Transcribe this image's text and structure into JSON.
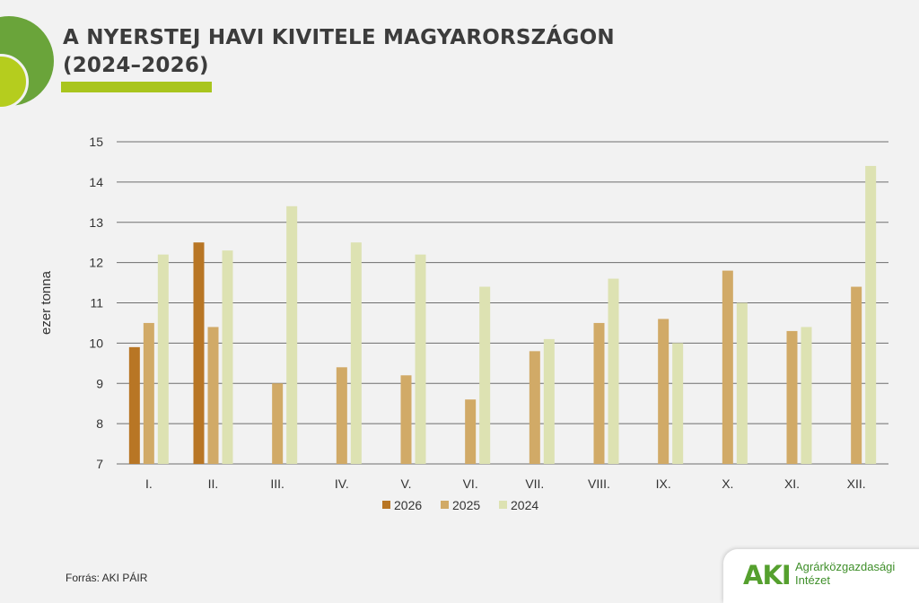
{
  "header": {
    "title_line1": "A NYERSTEJ HAVI KIVITELE MAGYARORSZÁGON",
    "title_line2": "(2024–2026)"
  },
  "footer": {
    "source": "Forrás: AKI PÁIR",
    "logo_mark": "AKI",
    "logo_line1": "Agrárközgazdasági",
    "logo_line2": "Intézet"
  },
  "chart_data": {
    "type": "bar",
    "title": "A NYERSTEJ HAVI KIVITELE MAGYARORSZÁGON (2024–2026)",
    "ylabel": "ezer tonna",
    "xlabel": "",
    "ylim": [
      7,
      15
    ],
    "yticks": [
      "7",
      "8",
      "9",
      "10",
      "11",
      "12",
      "13",
      "14",
      "15"
    ],
    "grid": true,
    "legend_position": "bottom",
    "categories": [
      "I.",
      "II.",
      "III.",
      "IV.",
      "V.",
      "VI.",
      "VII.",
      "VIII.",
      "IX.",
      "X.",
      "XI.",
      "XII."
    ],
    "series": [
      {
        "name": "2026",
        "color": "#b87625",
        "values": [
          9.9,
          12.5,
          null,
          null,
          null,
          null,
          null,
          null,
          null,
          null,
          null,
          null
        ]
      },
      {
        "name": "2025",
        "color": "#d1aa67",
        "values": [
          10.5,
          10.4,
          9.0,
          9.4,
          9.2,
          8.6,
          9.8,
          10.5,
          10.6,
          11.8,
          10.3,
          11.4
        ]
      },
      {
        "name": "2024",
        "color": "#dde2b2",
        "values": [
          12.2,
          12.3,
          13.4,
          12.5,
          12.2,
          11.4,
          10.1,
          11.6,
          10.0,
          11.0,
          10.4,
          14.4
        ]
      }
    ]
  }
}
